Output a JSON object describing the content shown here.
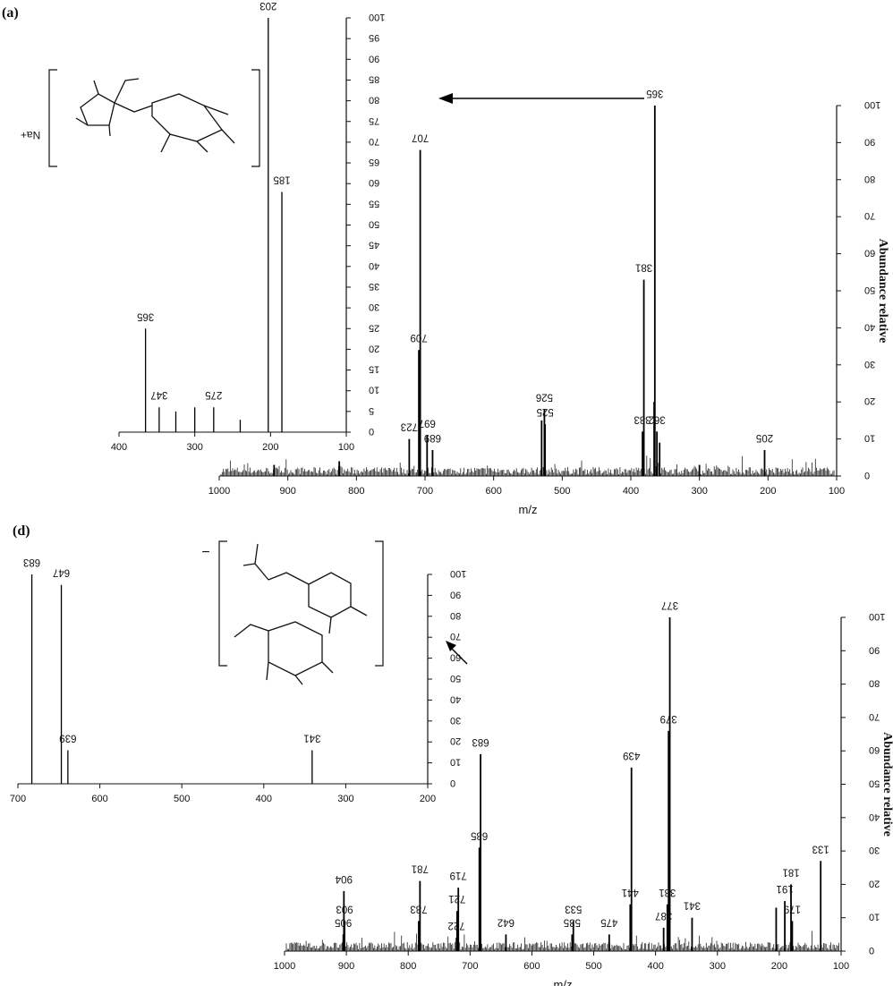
{
  "panels": [
    {
      "label": "(a)",
      "main": {
        "type": "bar",
        "xlabel": "m/z",
        "ylabel": "Abundance relative",
        "xlim": [
          100,
          1000
        ],
        "ylim": [
          0,
          100
        ],
        "xticks": [
          100,
          200,
          300,
          400,
          500,
          600,
          700,
          800,
          900,
          1000
        ],
        "yticks": [
          0,
          10,
          20,
          30,
          40,
          50,
          60,
          70,
          80,
          90,
          100
        ],
        "peaks": [
          {
            "mz": 205,
            "y": 7,
            "label": "205"
          },
          {
            "mz": 362,
            "y": 12,
            "label": "362"
          },
          {
            "mz": 365,
            "y": 100,
            "label": "365"
          },
          {
            "mz": 366,
            "y": 20
          },
          {
            "mz": 358,
            "y": 9
          },
          {
            "mz": 381,
            "y": 53,
            "label": "381"
          },
          {
            "mz": 383,
            "y": 12,
            "label": "383"
          },
          {
            "mz": 525,
            "y": 14,
            "label": "525"
          },
          {
            "mz": 526,
            "y": 18,
            "label": "526"
          },
          {
            "mz": 530,
            "y": 15
          },
          {
            "mz": 689,
            "y": 7,
            "label": "689"
          },
          {
            "mz": 697,
            "y": 11,
            "label": "697"
          },
          {
            "mz": 707,
            "y": 88,
            "label": "707"
          },
          {
            "mz": 709,
            "y": 34,
            "label": "709"
          },
          {
            "mz": 723,
            "y": 10,
            "label": "723"
          },
          {
            "mz": 300,
            "y": 3
          },
          {
            "mz": 825,
            "y": 4
          },
          {
            "mz": 920,
            "y": 3
          }
        ]
      },
      "inset": {
        "type": "bar",
        "xlim": [
          100,
          400
        ],
        "ylim": [
          0,
          100
        ],
        "xticks": [
          100,
          200,
          300,
          400
        ],
        "yticks": [
          0,
          5,
          10,
          15,
          20,
          25,
          30,
          35,
          40,
          45,
          50,
          55,
          60,
          65,
          70,
          75,
          80,
          85,
          90,
          95,
          100
        ],
        "peaks": [
          {
            "mz": 185,
            "y": 58,
            "label": "185"
          },
          {
            "mz": 203,
            "y": 100,
            "label": "203"
          },
          {
            "mz": 275,
            "y": 6,
            "label": "275"
          },
          {
            "mz": 347,
            "y": 6,
            "label": "347"
          },
          {
            "mz": 365,
            "y": 25,
            "label": "365"
          },
          {
            "mz": 240,
            "y": 3
          },
          {
            "mz": 300,
            "y": 6
          },
          {
            "mz": 325,
            "y": 5
          }
        ],
        "structure_note": "Na+"
      }
    },
    {
      "label": "(d)",
      "main": {
        "type": "bar",
        "xlabel": "m/z",
        "ylabel": "Abundance relative",
        "xlim": [
          100,
          1000
        ],
        "ylim": [
          0,
          100
        ],
        "xticks": [
          100,
          200,
          300,
          400,
          500,
          600,
          700,
          800,
          900,
          1000
        ],
        "yticks": [
          0,
          10,
          20,
          30,
          40,
          50,
          60,
          70,
          80,
          90,
          100
        ],
        "peaks": [
          {
            "mz": 133,
            "y": 27,
            "label": "133"
          },
          {
            "mz": 179,
            "y": 9,
            "label": "179"
          },
          {
            "mz": 181,
            "y": 20,
            "label": "181"
          },
          {
            "mz": 191,
            "y": 15,
            "label": "191"
          },
          {
            "mz": 205,
            "y": 13
          },
          {
            "mz": 341,
            "y": 10,
            "label": "341"
          },
          {
            "mz": 377,
            "y": 100,
            "label": "377"
          },
          {
            "mz": 379,
            "y": 66,
            "label": "379"
          },
          {
            "mz": 381,
            "y": 14,
            "label": "381"
          },
          {
            "mz": 387,
            "y": 7,
            "label": "387"
          },
          {
            "mz": 439,
            "y": 55,
            "label": "439"
          },
          {
            "mz": 441,
            "y": 14,
            "label": "441"
          },
          {
            "mz": 475,
            "y": 5,
            "label": "475"
          },
          {
            "mz": 533,
            "y": 9,
            "label": "533"
          },
          {
            "mz": 535,
            "y": 5,
            "label": "535"
          },
          {
            "mz": 642,
            "y": 5,
            "label": "642"
          },
          {
            "mz": 683,
            "y": 59,
            "label": "683"
          },
          {
            "mz": 685,
            "y": 31,
            "label": "685"
          },
          {
            "mz": 719,
            "y": 19,
            "label": "719"
          },
          {
            "mz": 721,
            "y": 12,
            "label": "721"
          },
          {
            "mz": 722,
            "y": 4,
            "label": "722"
          },
          {
            "mz": 781,
            "y": 21,
            "label": "781"
          },
          {
            "mz": 783,
            "y": 9,
            "label": "783"
          },
          {
            "mz": 903,
            "y": 9,
            "label": "903"
          },
          {
            "mz": 904,
            "y": 18,
            "label": "904"
          },
          {
            "mz": 905,
            "y": 5,
            "label": "905"
          }
        ]
      },
      "inset": {
        "type": "bar",
        "xlim": [
          200,
          700
        ],
        "ylim": [
          0,
          100
        ],
        "xticks": [
          200,
          300,
          400,
          500,
          600,
          700
        ],
        "yticks": [
          0,
          10,
          20,
          30,
          40,
          50,
          60,
          70,
          80,
          90,
          100
        ],
        "peaks": [
          {
            "mz": 341,
            "y": 16,
            "label": "341"
          },
          {
            "mz": 639,
            "y": 16,
            "label": "639"
          },
          {
            "mz": 647,
            "y": 95,
            "label": "647"
          },
          {
            "mz": 683,
            "y": 100,
            "label": "683"
          }
        ],
        "structure_note": "−"
      }
    }
  ]
}
